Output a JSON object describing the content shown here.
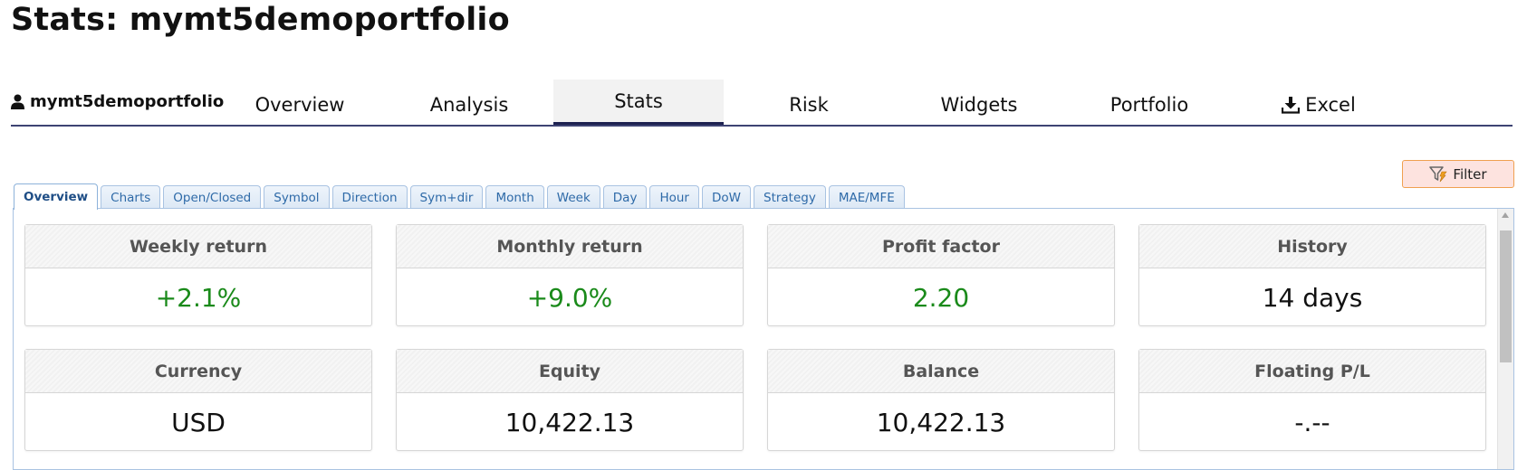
{
  "page_title": "Stats: mymt5demoportfolio",
  "nav": {
    "user": "mymt5demoportfolio",
    "tabs": [
      {
        "label": "Overview"
      },
      {
        "label": "Analysis"
      },
      {
        "label": "Stats",
        "active": true
      },
      {
        "label": "Risk"
      },
      {
        "label": "Widgets"
      },
      {
        "label": "Portfolio"
      },
      {
        "label": "Excel",
        "icon": "download-icon"
      }
    ]
  },
  "filter_button": {
    "label": "Filter",
    "icon": "filter-icon"
  },
  "sub_tabs": [
    "Overview",
    "Charts",
    "Open/Closed",
    "Symbol",
    "Direction",
    "Sym+dir",
    "Month",
    "Week",
    "Day",
    "Hour",
    "DoW",
    "Strategy",
    "MAE/MFE"
  ],
  "cards": [
    {
      "title": "Weekly return",
      "value": "+2.1%",
      "positive": true
    },
    {
      "title": "Monthly return",
      "value": "+9.0%",
      "positive": true
    },
    {
      "title": "Profit factor",
      "value": "2.20",
      "positive": true
    },
    {
      "title": "History",
      "value": "14 days",
      "positive": false
    },
    {
      "title": "Currency",
      "value": "USD",
      "positive": false
    },
    {
      "title": "Equity",
      "value": "10,422.13",
      "positive": false
    },
    {
      "title": "Balance",
      "value": "10,422.13",
      "positive": false
    },
    {
      "title": "Floating P/L",
      "value": "-.--",
      "positive": false
    }
  ],
  "colors": {
    "positive": "#1a8a1a",
    "nav_underline": "#3d4373",
    "filter_bg": "#fde3df",
    "tab_text": "#2e6aa8"
  }
}
